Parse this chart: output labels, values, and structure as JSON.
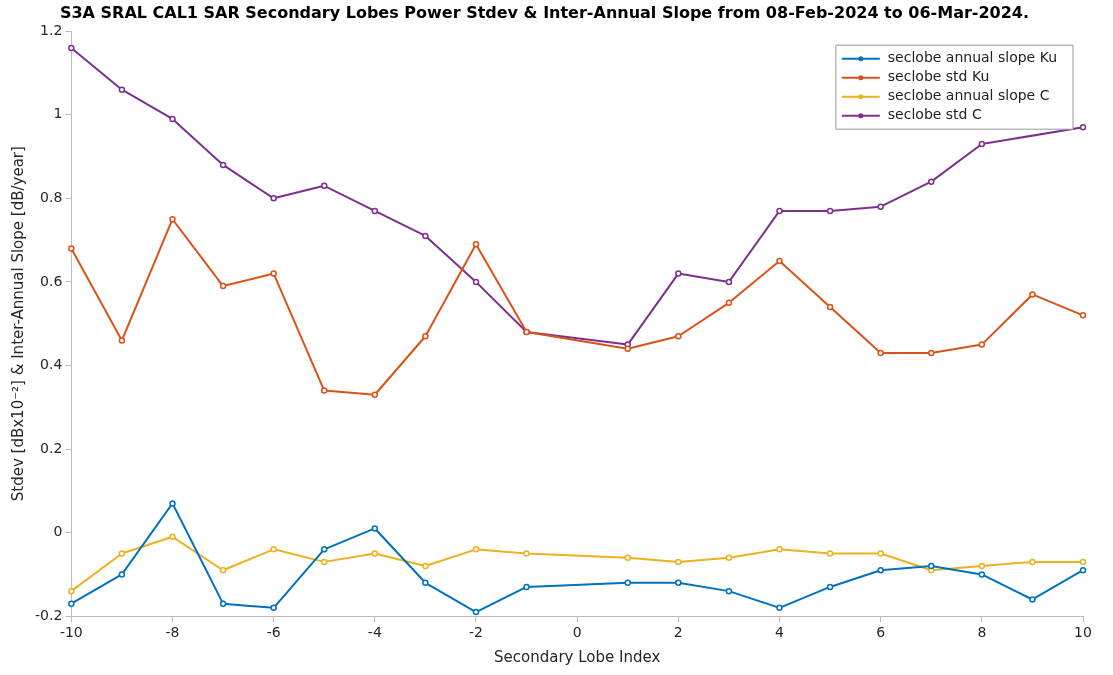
{
  "chart_data": {
    "type": "line",
    "title": "S3A SRAL CAL1 SAR Secondary Lobes Power Stdev & Inter-Annual Slope from 08-Feb-2024 to 06-Mar-2024.",
    "xlabel": "Secondary Lobe Index",
    "ylabel": "Stdev [dBx10⁻²] & Inter-Annual Slope [dB/year]",
    "x": [
      -10,
      -9,
      -8,
      -7,
      -6,
      -5,
      -4,
      -3,
      -2,
      -1,
      1,
      2,
      3,
      4,
      5,
      6,
      7,
      8,
      9,
      10
    ],
    "series": [
      {
        "name": "seclobe annual slope Ku",
        "color": "#0072bd",
        "values": [
          -0.17,
          -0.1,
          0.07,
          -0.17,
          -0.18,
          -0.04,
          0.01,
          -0.12,
          -0.19,
          -0.13,
          -0.12,
          -0.12,
          -0.14,
          -0.18,
          -0.13,
          -0.09,
          -0.08,
          -0.1,
          -0.16,
          -0.09
        ]
      },
      {
        "name": "seclobe std Ku",
        "color": "#d95319",
        "values": [
          0.68,
          0.46,
          0.75,
          0.59,
          0.62,
          0.34,
          0.33,
          0.47,
          0.69,
          0.48,
          0.44,
          0.47,
          0.55,
          0.65,
          0.54,
          0.43,
          0.43,
          0.45,
          0.57,
          0.52
        ]
      },
      {
        "name": "seclobe annual slope C",
        "color": "#edb120",
        "values": [
          -0.14,
          -0.05,
          -0.01,
          -0.09,
          -0.04,
          -0.07,
          -0.05,
          -0.08,
          -0.04,
          -0.05,
          -0.06,
          -0.07,
          -0.06,
          -0.04,
          -0.05,
          -0.05,
          -0.09,
          -0.08,
          -0.07,
          -0.07
        ]
      },
      {
        "name": "seclobe std C",
        "color": "#7e2f8e",
        "values": [
          1.16,
          1.06,
          0.99,
          0.88,
          0.8,
          0.83,
          0.77,
          0.71,
          0.6,
          0.48,
          0.45,
          0.62,
          0.6,
          0.77,
          0.77,
          0.78,
          0.84,
          0.93,
          null,
          0.97
        ]
      }
    ],
    "xlim": [
      -10,
      10
    ],
    "xticks": [
      -10,
      -8,
      -6,
      -4,
      -2,
      0,
      2,
      4,
      6,
      8,
      10
    ],
    "ylim": [
      -0.2,
      1.2
    ],
    "yticks": [
      -0.2,
      0,
      0.2,
      0.4,
      0.6,
      0.8,
      1,
      1.2
    ],
    "legend": "top right",
    "marker": "circle",
    "line_style": "solid",
    "grid": false
  }
}
